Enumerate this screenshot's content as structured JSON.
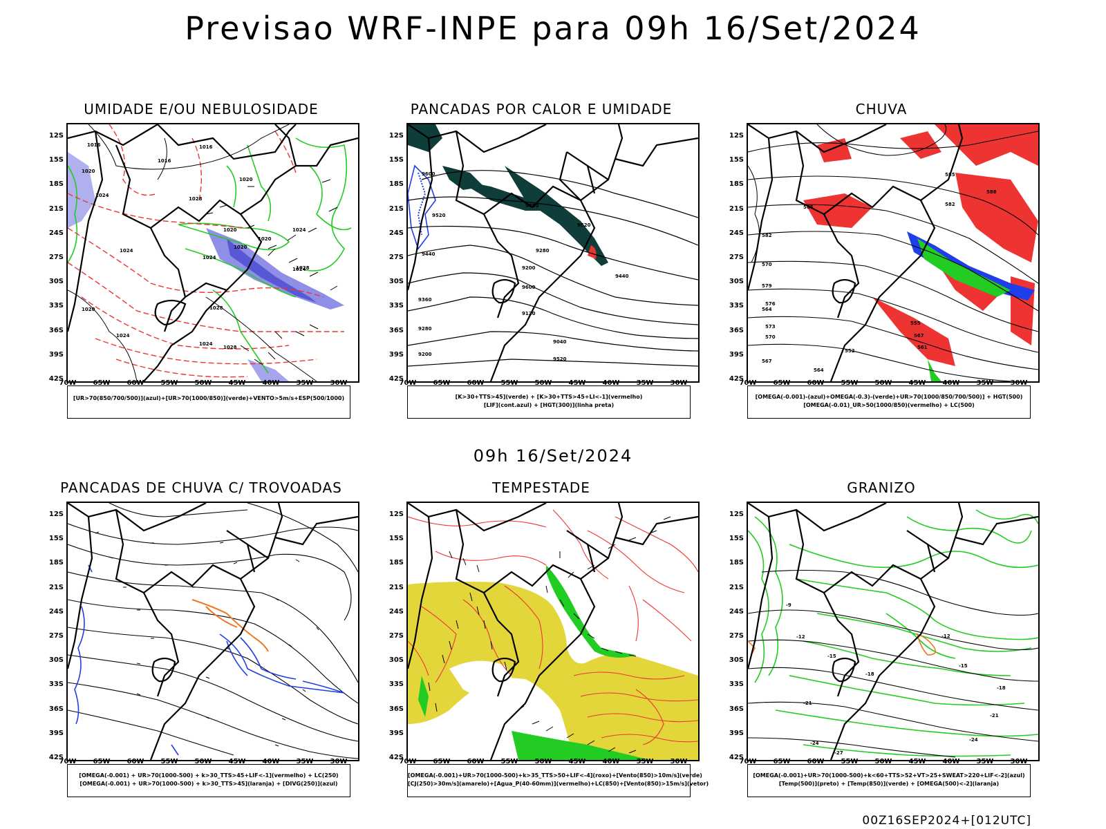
{
  "title": "Previsao WRF-INPE  para 09h 16/Set/2024",
  "mid_title": "09h 16/Set/2024",
  "footer": "00Z16SEP2024+[012UTC]",
  "lat_ticks": [
    "12S",
    "15S",
    "18S",
    "21S",
    "24S",
    "27S",
    "30S",
    "33S",
    "36S",
    "39S",
    "42S"
  ],
  "lon_ticks": [
    "70W",
    "65W",
    "60W",
    "55W",
    "50W",
    "45W",
    "40W",
    "35W",
    "30W"
  ],
  "colors": {
    "blue_shade": "#8f8fe8",
    "blue_contour": "#1f3de8",
    "green": "#22cc22",
    "red": "#ee3333",
    "dark_teal": "#0f3d3a",
    "orange": "#ee7722",
    "yellow": "#e3d63a"
  },
  "panels": [
    {
      "title": "UMIDADE E/OU NEBULOSIDADE",
      "legend": [
        "[UR>70(850/700/500)](azul)+[UR>70(1000/850)](verde)+VENTO>5m/s+ESP(500/1000)"
      ]
    },
    {
      "title": "PANCADAS POR CALOR E UMIDADE",
      "legend": [
        "[K>30+TTS>45](verde) + [K>30+TTS>45+LI<-1](vermelho)",
        "[LIF](cont.azul) + [HGT(300)](linha preta)"
      ],
      "contour_labels": [
        "9600",
        "9520",
        "9440",
        "9360",
        "9280",
        "9200",
        "9120",
        "9040",
        "9520",
        "9440",
        "9360",
        "9280",
        "9200",
        "9600",
        "9520"
      ]
    },
    {
      "title": "CHUVA",
      "legend": [
        "[OMEGA(-0.001)-(azul)+OMEGA(-0.3)-(verde)+UR>70(1000/850/700/500)] + HGT(500)",
        "[OMEGA(-0.01)_UR>50(1000/850)(vermelho) + LC(500)"
      ],
      "contour_labels": [
        "585",
        "582",
        "579",
        "576",
        "573",
        "570",
        "567",
        "564",
        "552",
        "555",
        "561",
        "567",
        "564",
        "570",
        "585",
        "582",
        "588"
      ]
    },
    {
      "title": "PANCADAS DE CHUVA C/ TROVOADAS",
      "legend": [
        "[OMEGA(-0.001) + UR>70(1000-500) + k>30_TTS>45+LIF<-1](vermelho) + LC(250)",
        "[OMEGA(-0.001) + UR>70(1000-500) + k>30_TTS>45](laranja) + [DIVG(250)](azul)"
      ]
    },
    {
      "title": "TEMPESTADE",
      "legend": [
        "[OMEGA(-0.001)+UR>70(1000-500)+k>35_TTS>50+LIF<-4](roxo)+[Vento(850)>10m/s](verde)",
        "[CJ(250)>30m/s](amarelo)+[Agua_P(40-60mm)](vermelho)+LC(850)+[Vento(850)>15m/s](vetor)"
      ]
    },
    {
      "title": "GRANIZO",
      "legend": [
        "[OMEGA(-0.001)+UR>70(1000-500)+k<60+TTS>52+VT>25+SWEAT>220+LIF<-2](azul)",
        "[Temp(500)](preto) + [Temp(850)](verde) + [OMEGA(500)<-2](laranja)"
      ],
      "contour_labels": [
        "-9",
        "-12",
        "-15",
        "-18",
        "-21",
        "-24",
        "-27",
        "-12",
        "-15",
        "-18",
        "-21",
        "-24"
      ]
    }
  ],
  "panel1_labels": [
    "1016",
    "1016",
    "1016",
    "1020",
    "1020",
    "1024",
    "1024",
    "1020",
    "1020",
    "1024",
    "1028",
    "1024",
    "1028",
    "1020",
    "1024",
    "1020",
    "1024",
    "1028",
    "1024",
    "1028"
  ]
}
